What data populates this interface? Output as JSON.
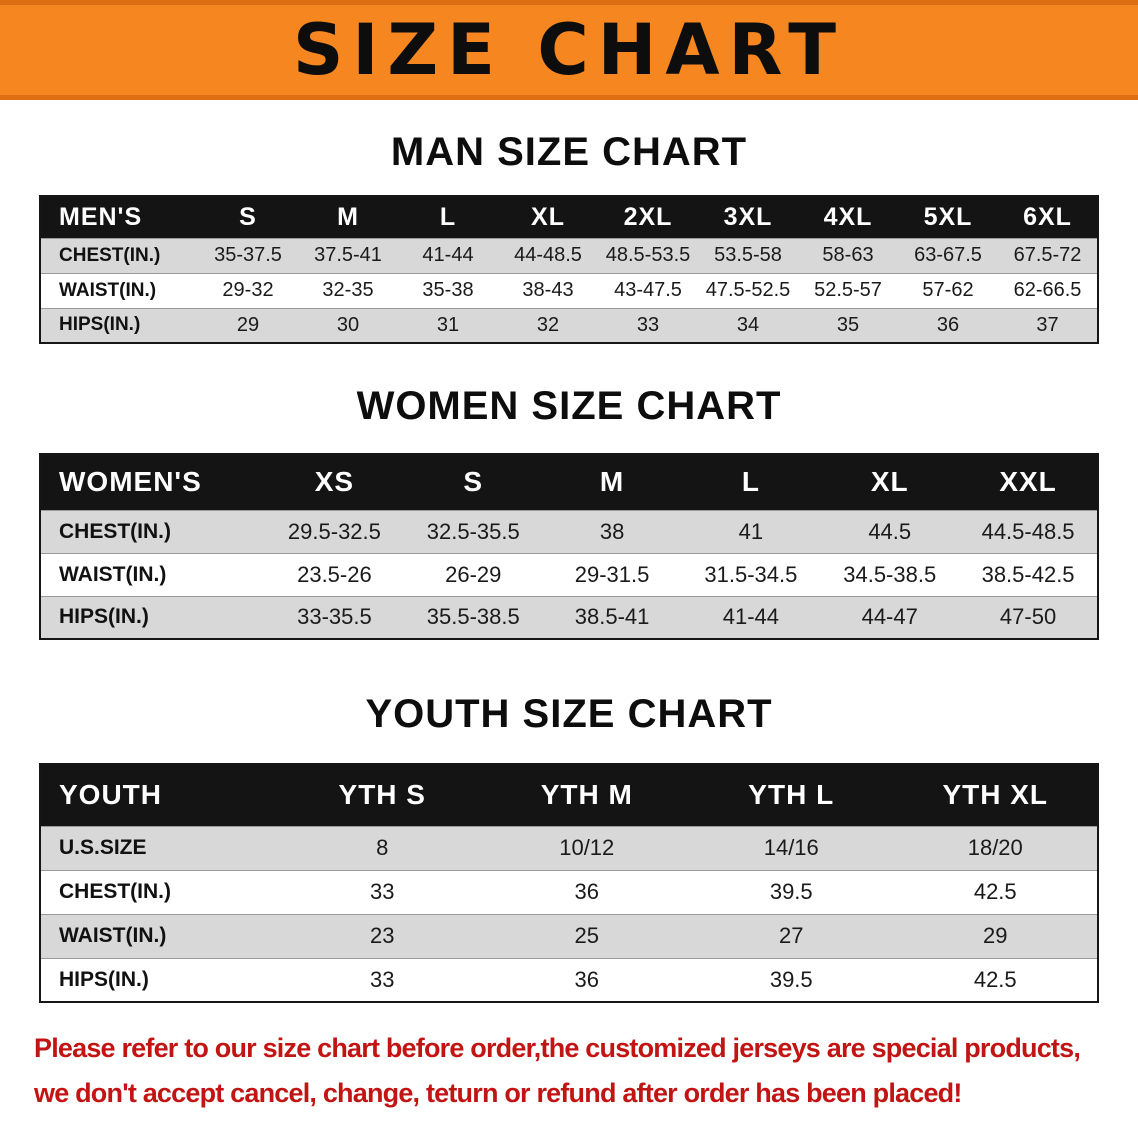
{
  "banner": {
    "title": "SIZE CHART"
  },
  "colors": {
    "banner_bg": "#F6861F",
    "banner_border": "#DD6E12",
    "table_header_bg": "#141414",
    "row_stripe": "#D8D8D8",
    "notice_red": "#C31414"
  },
  "sections": [
    {
      "id": "men",
      "heading": "MAN SIZE CHART",
      "table": {
        "header": [
          "MEN'S",
          "S",
          "M",
          "L",
          "XL",
          "2XL",
          "3XL",
          "4XL",
          "5XL",
          "6XL"
        ],
        "rows": [
          {
            "label": "CHEST(IN.)",
            "values": [
              "35-37.5",
              "37.5-41",
              "41-44",
              "44-48.5",
              "48.5-53.5",
              "53.5-58",
              "58-63",
              "63-67.5",
              "67.5-72"
            ]
          },
          {
            "label": "WAIST(IN.)",
            "values": [
              "29-32",
              "32-35",
              "35-38",
              "38-43",
              "43-47.5",
              "47.5-52.5",
              "52.5-57",
              "57-62",
              "62-66.5"
            ]
          },
          {
            "label": "HIPS(IN.)",
            "values": [
              "29",
              "30",
              "31",
              "32",
              "33",
              "34",
              "35",
              "36",
              "37"
            ]
          }
        ]
      }
    },
    {
      "id": "women",
      "heading": "WOMEN SIZE CHART",
      "table": {
        "header": [
          "WOMEN'S",
          "XS",
          "S",
          "M",
          "L",
          "XL",
          "XXL"
        ],
        "rows": [
          {
            "label": "CHEST(IN.)",
            "values": [
              "29.5-32.5",
              "32.5-35.5",
              "38",
              "41",
              "44.5",
              "44.5-48.5"
            ]
          },
          {
            "label": "WAIST(IN.)",
            "values": [
              "23.5-26",
              "26-29",
              "29-31.5",
              "31.5-34.5",
              "34.5-38.5",
              "38.5-42.5"
            ]
          },
          {
            "label": "HIPS(IN.)",
            "values": [
              "33-35.5",
              "35.5-38.5",
              "38.5-41",
              "41-44",
              "44-47",
              "47-50"
            ]
          }
        ]
      }
    },
    {
      "id": "youth",
      "heading": "YOUTH SIZE CHART",
      "table": {
        "header": [
          "YOUTH",
          "YTH S",
          "YTH M",
          "YTH L",
          "YTH XL"
        ],
        "rows": [
          {
            "label": "U.S.SIZE",
            "values": [
              "8",
              "10/12",
              "14/16",
              "18/20"
            ]
          },
          {
            "label": "CHEST(IN.)",
            "values": [
              "33",
              "36",
              "39.5",
              "42.5"
            ]
          },
          {
            "label": "WAIST(IN.)",
            "values": [
              "23",
              "25",
              "27",
              "29"
            ]
          },
          {
            "label": "HIPS(IN.)",
            "values": [
              "33",
              "36",
              "39.5",
              "42.5"
            ]
          }
        ]
      }
    }
  ],
  "notice": {
    "lines": [
      "Please refer to our size chart before order,the customized jerseys are special products,",
      "we don't accept cancel, change, teturn or refund after order has been placed!"
    ]
  }
}
